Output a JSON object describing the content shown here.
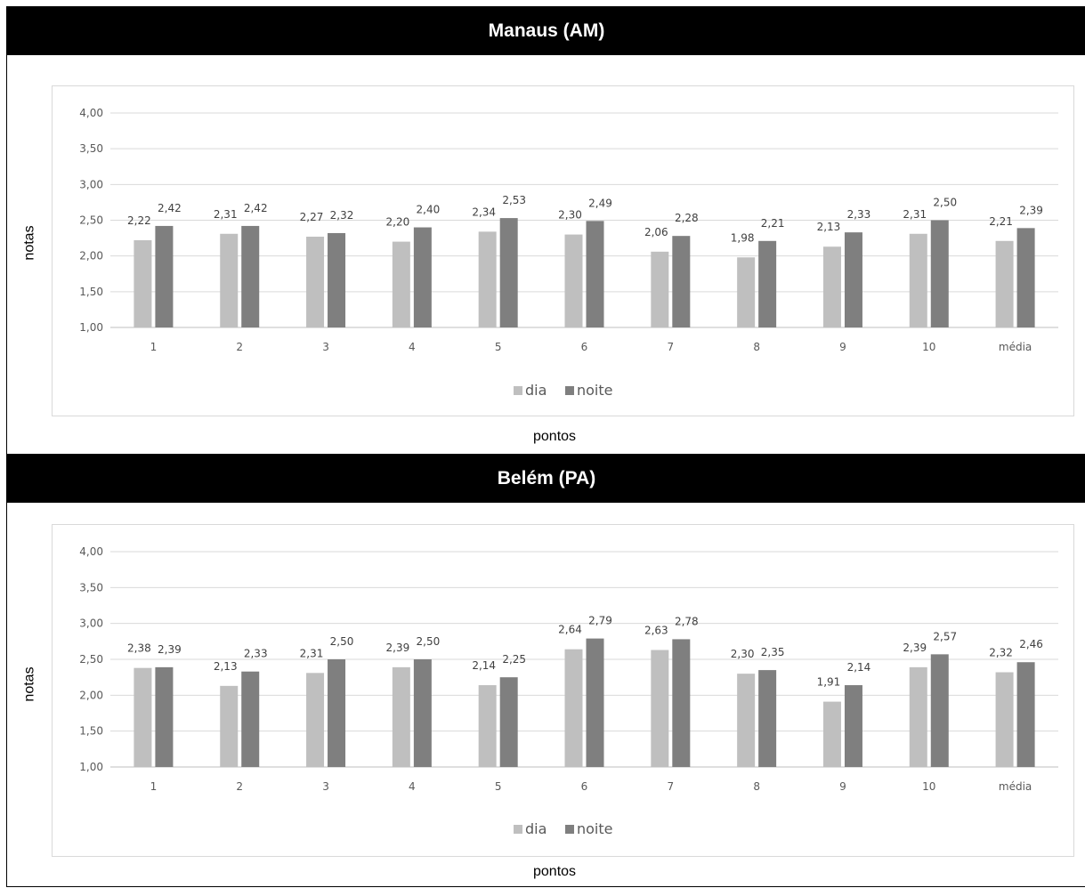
{
  "colors": {
    "dia": "#bfbfbf",
    "noite": "#7f7f7f",
    "grid": "#d9d9d9",
    "header_bg": "#000000"
  },
  "chart_data": [
    {
      "type": "bar",
      "title": "Manaus (AM)",
      "xlabel": "pontos",
      "ylabel": "notas",
      "categories": [
        "1",
        "2",
        "3",
        "4",
        "5",
        "6",
        "7",
        "8",
        "9",
        "10",
        "média"
      ],
      "yticks": [
        "1,00",
        "1,50",
        "2,00",
        "2,50",
        "3,00",
        "3,50",
        "4,00"
      ],
      "ylim": [
        1,
        4
      ],
      "grid": true,
      "legend_position": "bottom",
      "series": [
        {
          "name": "dia",
          "values": [
            2.22,
            2.31,
            2.27,
            2.2,
            2.34,
            2.3,
            2.06,
            1.98,
            2.13,
            2.31,
            2.21
          ],
          "labels": [
            "2,22",
            "2,31",
            "2,27",
            "2,20",
            "2,34",
            "2,30",
            "2,06",
            "1,98",
            "2,13",
            "2,31",
            "2,21"
          ]
        },
        {
          "name": "noite",
          "values": [
            2.42,
            2.42,
            2.32,
            2.4,
            2.53,
            2.49,
            2.28,
            2.21,
            2.33,
            2.5,
            2.39
          ],
          "labels": [
            "2,42",
            "2,42",
            "2,32",
            "2,40",
            "2,53",
            "2,49",
            "2,28",
            "2,21",
            "2,33",
            "2,50",
            "2,39"
          ]
        }
      ]
    },
    {
      "type": "bar",
      "title": "Belém (PA)",
      "xlabel": "pontos",
      "ylabel": "notas",
      "categories": [
        "1",
        "2",
        "3",
        "4",
        "5",
        "6",
        "7",
        "8",
        "9",
        "10",
        "média"
      ],
      "yticks": [
        "1,00",
        "1,50",
        "2,00",
        "2,50",
        "3,00",
        "3,50",
        "4,00"
      ],
      "ylim": [
        1,
        4
      ],
      "grid": true,
      "legend_position": "bottom",
      "series": [
        {
          "name": "dia",
          "values": [
            2.38,
            2.13,
            2.31,
            2.39,
            2.14,
            2.64,
            2.63,
            2.3,
            1.91,
            2.39,
            2.32
          ],
          "labels": [
            "2,38",
            "2,13",
            "2,31",
            "2,39",
            "2,14",
            "2,64",
            "2,63",
            "2,30",
            "1,91",
            "2,39",
            "2,32"
          ]
        },
        {
          "name": "noite",
          "values": [
            2.39,
            2.33,
            2.5,
            2.5,
            2.25,
            2.79,
            2.78,
            2.35,
            2.14,
            2.57,
            2.46
          ],
          "labels": [
            "2,39",
            "2,33",
            "2,50",
            "2,50",
            "2,25",
            "2,79",
            "2,78",
            "2,35",
            "2,14",
            "2,57",
            "2,46"
          ]
        }
      ]
    }
  ]
}
